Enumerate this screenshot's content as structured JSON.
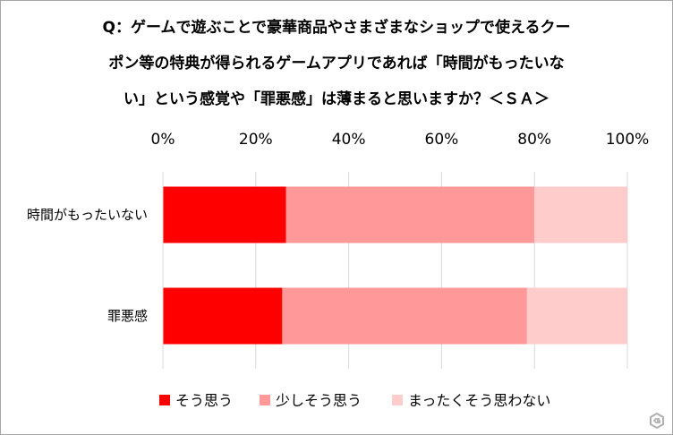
{
  "chart_data": {
    "type": "bar",
    "orientation": "horizontal",
    "stacked": true,
    "title_lines": [
      "Q：ゲームで遊ぶことで豪華商品やさまざまなショップで使えるクー",
      "ポン等の特典が得られるゲームアプリであれば「時間がもったいな",
      "い」という感覚や「罪悪感」は薄まると思いますか？＜ＳＡ＞"
    ],
    "categories": [
      "時間がもったいない",
      "罪悪感"
    ],
    "series": [
      {
        "name": "そう思う",
        "values": [
          26.5,
          25.7
        ],
        "color": "#ff0000"
      },
      {
        "name": "少しそう思う",
        "values": [
          53.5,
          52.7
        ],
        "color": "#ff9999"
      },
      {
        "name": "まったくそう思わない",
        "values": [
          20.0,
          21.6
        ],
        "color": "#ffcccc"
      }
    ],
    "xlim": [
      0,
      100
    ],
    "x_ticks": [
      "0%",
      "20%",
      "40%",
      "60%",
      "80%",
      "100%"
    ],
    "x_tick_values": [
      0,
      20,
      40,
      60,
      80,
      100
    ],
    "grid": true,
    "legend_position": "bottom"
  },
  "watermark_icon": "gamer-logo-icon"
}
